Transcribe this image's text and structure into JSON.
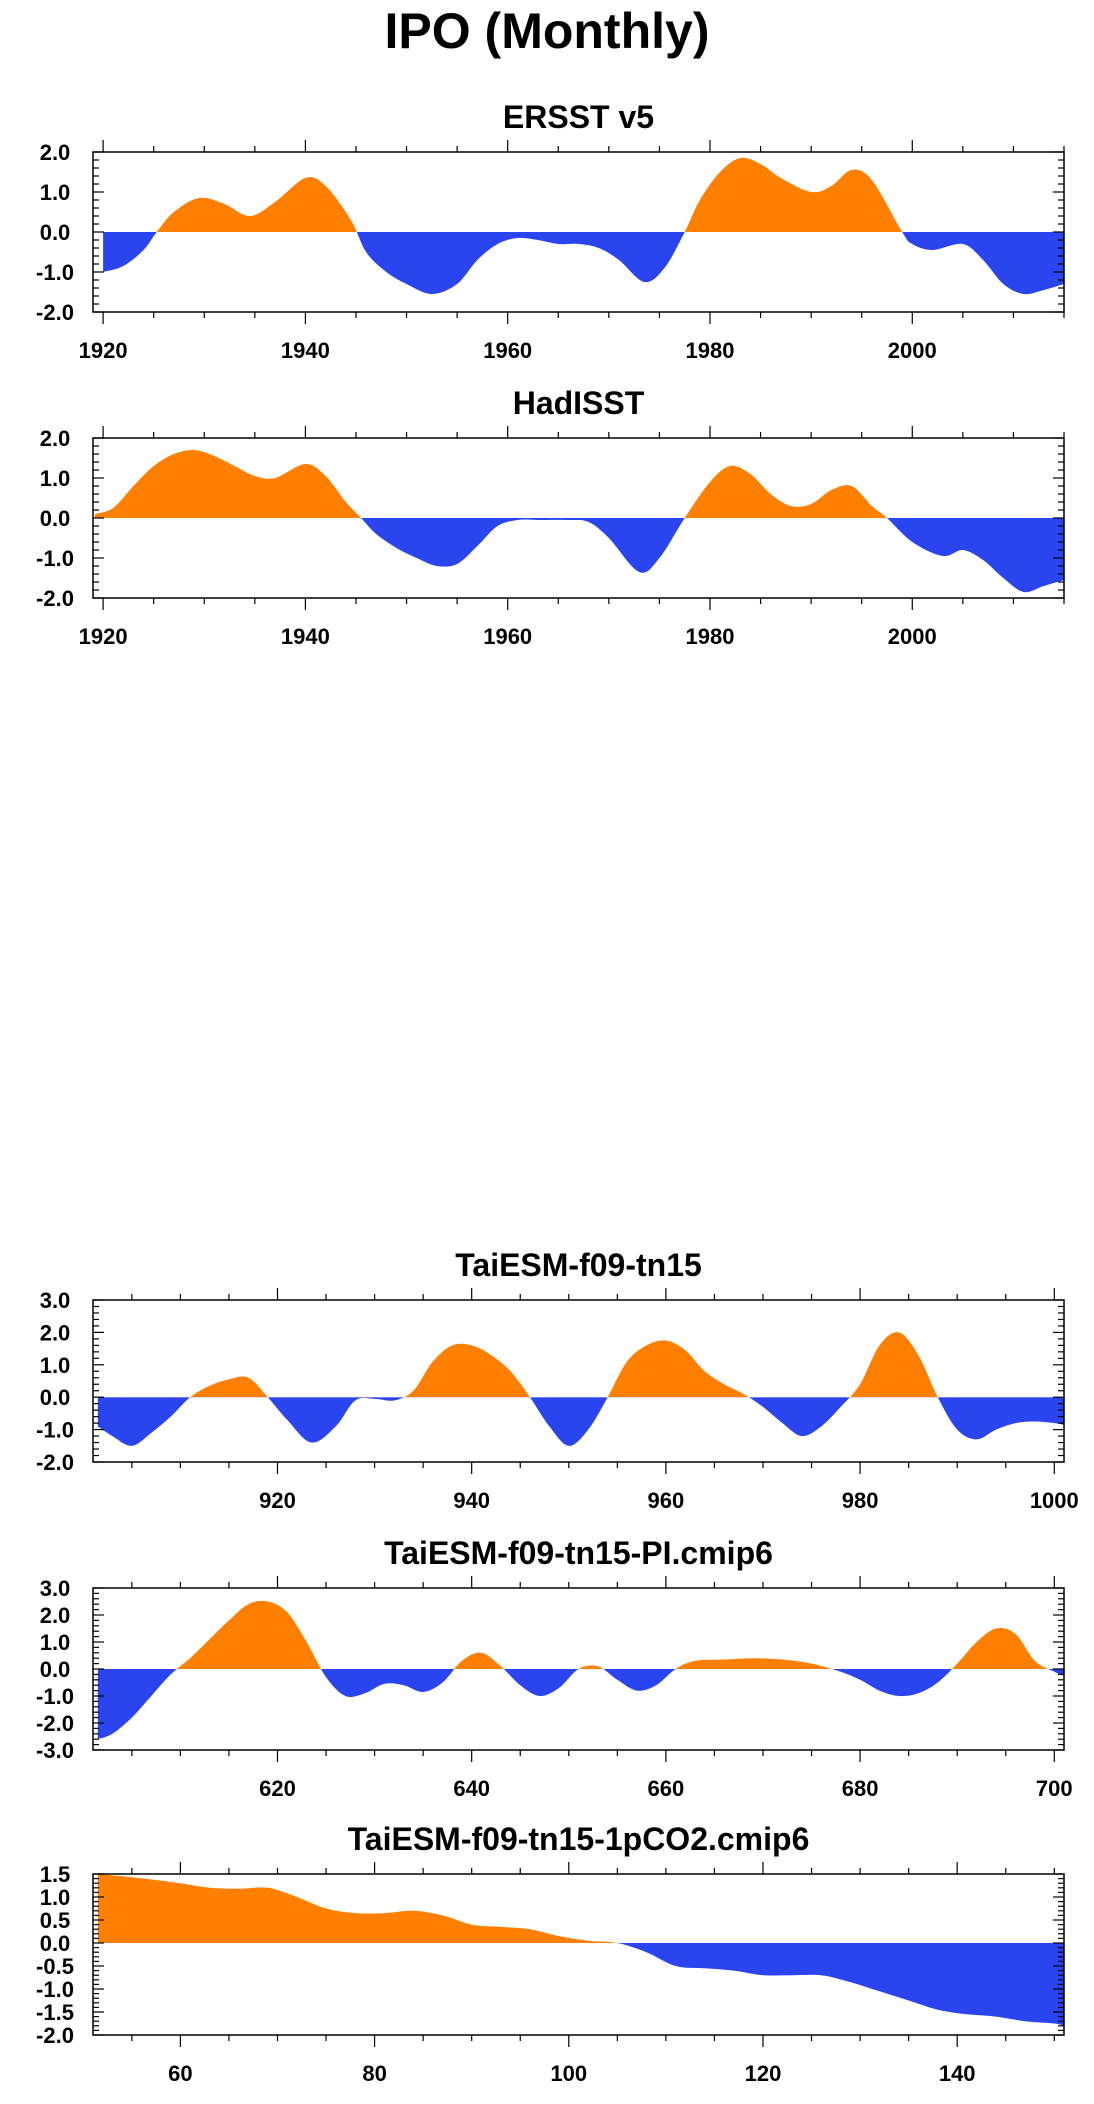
{
  "title": "IPO (Monthly)",
  "colors": {
    "positive": "#ff8000",
    "negative": "#2a45f0",
    "frame": "#000000"
  },
  "chart_data": [
    {
      "type": "area",
      "title": "ERSST v5",
      "xlim": [
        1919,
        2015
      ],
      "ylim": [
        -2.0,
        2.0
      ],
      "yticks": [
        -2.0,
        -1.0,
        0.0,
        1.0,
        2.0
      ],
      "ytick_labels": [
        "-2.0",
        "-1.0",
        "0.0",
        "1.0",
        "2.0"
      ],
      "xticks": [
        1920,
        1940,
        1960,
        1980,
        2000
      ],
      "xtick_labels": [
        "1920",
        "1940",
        "1960",
        "1980",
        "2000"
      ],
      "series": [
        {
          "x": [
            1920,
            1922,
            1924,
            1925.3,
            1927,
            1929.5,
            1932,
            1934.5,
            1937,
            1940,
            1942,
            1944.5,
            1946,
            1948,
            1950,
            1952.5,
            1955,
            1957,
            1959,
            1961,
            1963,
            1965,
            1967,
            1969,
            1971,
            1973.5,
            1975.5,
            1977.5,
            1979,
            1981,
            1983,
            1985,
            1987,
            1990,
            1992,
            1994,
            1996,
            1999,
            2000,
            2002,
            2005,
            2007,
            2009,
            2011,
            2013,
            2015
          ],
          "y": [
            -1.0,
            -0.85,
            -0.45,
            0.0,
            0.5,
            0.85,
            0.7,
            0.4,
            0.75,
            1.35,
            1.15,
            0.3,
            -0.5,
            -1.0,
            -1.3,
            -1.55,
            -1.3,
            -0.7,
            -0.3,
            -0.15,
            -0.2,
            -0.3,
            -0.3,
            -0.4,
            -0.7,
            -1.25,
            -0.9,
            0.0,
            0.8,
            1.5,
            1.85,
            1.7,
            1.35,
            1.0,
            1.15,
            1.55,
            1.3,
            0.0,
            -0.3,
            -0.45,
            -0.3,
            -0.7,
            -1.3,
            -1.55,
            -1.45,
            -1.3
          ]
        }
      ]
    },
    {
      "type": "area",
      "title": "HadISST",
      "xlim": [
        1919,
        2015
      ],
      "ylim": [
        -2.0,
        2.0
      ],
      "yticks": [
        -2.0,
        -1.0,
        0.0,
        1.0,
        2.0
      ],
      "ytick_labels": [
        "-2.0",
        "-1.0",
        "0.0",
        "1.0",
        "2.0"
      ],
      "xticks": [
        1920,
        1940,
        1960,
        1980,
        2000
      ],
      "xtick_labels": [
        "1920",
        "1940",
        "1960",
        "1980",
        "2000"
      ],
      "series": [
        {
          "x": [
            1919.2,
            1921,
            1923,
            1925,
            1927,
            1929,
            1931,
            1933,
            1935,
            1937,
            1940,
            1942,
            1944,
            1945.5,
            1947,
            1949,
            1951,
            1953,
            1955,
            1957,
            1959,
            1961,
            1963,
            1966,
            1968,
            1970,
            1973,
            1975,
            1977.5,
            1980,
            1982,
            1984,
            1986,
            1988,
            1990,
            1992,
            1994,
            1996,
            1997.5,
            2000,
            2003,
            2005,
            2007,
            2009,
            2011,
            2013,
            2015
          ],
          "y": [
            0.1,
            0.25,
            0.8,
            1.3,
            1.6,
            1.7,
            1.55,
            1.3,
            1.05,
            1.0,
            1.35,
            1.05,
            0.4,
            0.0,
            -0.4,
            -0.75,
            -1.0,
            -1.2,
            -1.15,
            -0.7,
            -0.2,
            -0.05,
            -0.05,
            -0.05,
            -0.1,
            -0.5,
            -1.35,
            -1.0,
            0.0,
            0.9,
            1.3,
            1.1,
            0.6,
            0.3,
            0.35,
            0.7,
            0.8,
            0.3,
            0.0,
            -0.6,
            -0.95,
            -0.8,
            -1.05,
            -1.5,
            -1.85,
            -1.7,
            -1.55
          ]
        }
      ]
    },
    {
      "type": "area",
      "title": "TaiESM-f09-tn15",
      "xlim": [
        901,
        1001
      ],
      "ylim": [
        -2.0,
        3.0
      ],
      "yticks": [
        -2.0,
        -1.0,
        0.0,
        1.0,
        2.0,
        3.0
      ],
      "ytick_labels": [
        "-2.0",
        "-1.0",
        "0.0",
        "1.0",
        "2.0",
        "3.0"
      ],
      "xticks": [
        920,
        940,
        960,
        980,
        1000
      ],
      "xtick_labels": [
        "920",
        "940",
        "960",
        "980",
        "1000"
      ],
      "series": [
        {
          "x": [
            901.5,
            903,
            905,
            907,
            909,
            911,
            913,
            915,
            917,
            919,
            921,
            923.5,
            926,
            928,
            930,
            932,
            934,
            936,
            938,
            940,
            942,
            944,
            946,
            948,
            950,
            952,
            954,
            956,
            958,
            960,
            962,
            964,
            966,
            968,
            970,
            972,
            974,
            976,
            978,
            980,
            982,
            984,
            986,
            988,
            990,
            992,
            994,
            996,
            998,
            1000,
            1001
          ],
          "y": [
            -0.9,
            -1.2,
            -1.5,
            -1.1,
            -0.6,
            0.0,
            0.35,
            0.55,
            0.6,
            0.0,
            -0.7,
            -1.4,
            -0.9,
            -0.1,
            -0.05,
            -0.1,
            0.2,
            1.1,
            1.6,
            1.6,
            1.3,
            0.8,
            0.0,
            -0.9,
            -1.5,
            -1.0,
            0.0,
            1.1,
            1.6,
            1.75,
            1.45,
            0.8,
            0.4,
            0.1,
            -0.3,
            -0.8,
            -1.2,
            -0.9,
            -0.3,
            0.4,
            1.6,
            2.0,
            1.3,
            0.0,
            -1.0,
            -1.3,
            -1.0,
            -0.8,
            -0.75,
            -0.8,
            -0.85
          ]
        }
      ]
    },
    {
      "type": "area",
      "title": "TaiESM-f09-tn15-PI.cmip6",
      "xlim": [
        601,
        701
      ],
      "ylim": [
        -3.0,
        3.0
      ],
      "yticks": [
        -3.0,
        -2.0,
        -1.0,
        0.0,
        1.0,
        2.0,
        3.0
      ],
      "ytick_labels": [
        "-3.0",
        "-2.0",
        "-1.0",
        "0.0",
        "1.0",
        "2.0",
        "3.0"
      ],
      "xticks": [
        620,
        640,
        660,
        680,
        700
      ],
      "xtick_labels": [
        "620",
        "640",
        "660",
        "680",
        "700"
      ],
      "series": [
        {
          "x": [
            601.5,
            603,
            605,
            607,
            609,
            611,
            613,
            615,
            617,
            619,
            621,
            623,
            625,
            627,
            629,
            631,
            633,
            635,
            637,
            639,
            641,
            643,
            645,
            647,
            649,
            651,
            653,
            655,
            657,
            659,
            661,
            663,
            666,
            669,
            672,
            675,
            678,
            680,
            682,
            684,
            686,
            688,
            690,
            692,
            694,
            696,
            698,
            700,
            701
          ],
          "y": [
            -2.6,
            -2.4,
            -1.8,
            -1.0,
            -0.2,
            0.4,
            1.1,
            1.8,
            2.4,
            2.5,
            2.1,
            1.0,
            -0.3,
            -1.0,
            -0.9,
            -0.55,
            -0.6,
            -0.85,
            -0.5,
            0.3,
            0.6,
            0.1,
            -0.6,
            -1.0,
            -0.7,
            0.0,
            0.1,
            -0.4,
            -0.8,
            -0.6,
            0.0,
            0.3,
            0.35,
            0.4,
            0.35,
            0.2,
            -0.1,
            -0.4,
            -0.8,
            -1.0,
            -0.9,
            -0.5,
            0.2,
            1.0,
            1.5,
            1.3,
            0.3,
            -0.1,
            -0.25
          ]
        }
      ]
    },
    {
      "type": "area",
      "title": "TaiESM-f09-tn15-1pCO2.cmip6",
      "xlim": [
        51,
        151
      ],
      "ylim": [
        -2.0,
        1.5
      ],
      "yticks": [
        -2.0,
        -1.5,
        -1.0,
        -0.5,
        0.0,
        0.5,
        1.0,
        1.5
      ],
      "ytick_labels": [
        "-2.0",
        "-1.5",
        "-1.0",
        "-0.5",
        "0.0",
        "0.5",
        "1.0",
        "1.5"
      ],
      "xticks": [
        60,
        80,
        100,
        120,
        140
      ],
      "xtick_labels": [
        "60",
        "80",
        "100",
        "120",
        "140"
      ],
      "series": [
        {
          "x": [
            51.5,
            54,
            57,
            60,
            63,
            66,
            69,
            72,
            75,
            78,
            81,
            84,
            87,
            90,
            93,
            96,
            99,
            102,
            105,
            108,
            111,
            114,
            117,
            120,
            123,
            126,
            129,
            132,
            135,
            138,
            141,
            144,
            147,
            150,
            151
          ],
          "y": [
            1.5,
            1.45,
            1.38,
            1.3,
            1.2,
            1.18,
            1.2,
            1.0,
            0.75,
            0.65,
            0.65,
            0.7,
            0.6,
            0.4,
            0.35,
            0.3,
            0.15,
            0.05,
            0.0,
            -0.2,
            -0.5,
            -0.55,
            -0.6,
            -0.7,
            -0.7,
            -0.7,
            -0.85,
            -1.05,
            -1.25,
            -1.45,
            -1.55,
            -1.6,
            -1.7,
            -1.75,
            -1.8
          ]
        }
      ]
    }
  ]
}
